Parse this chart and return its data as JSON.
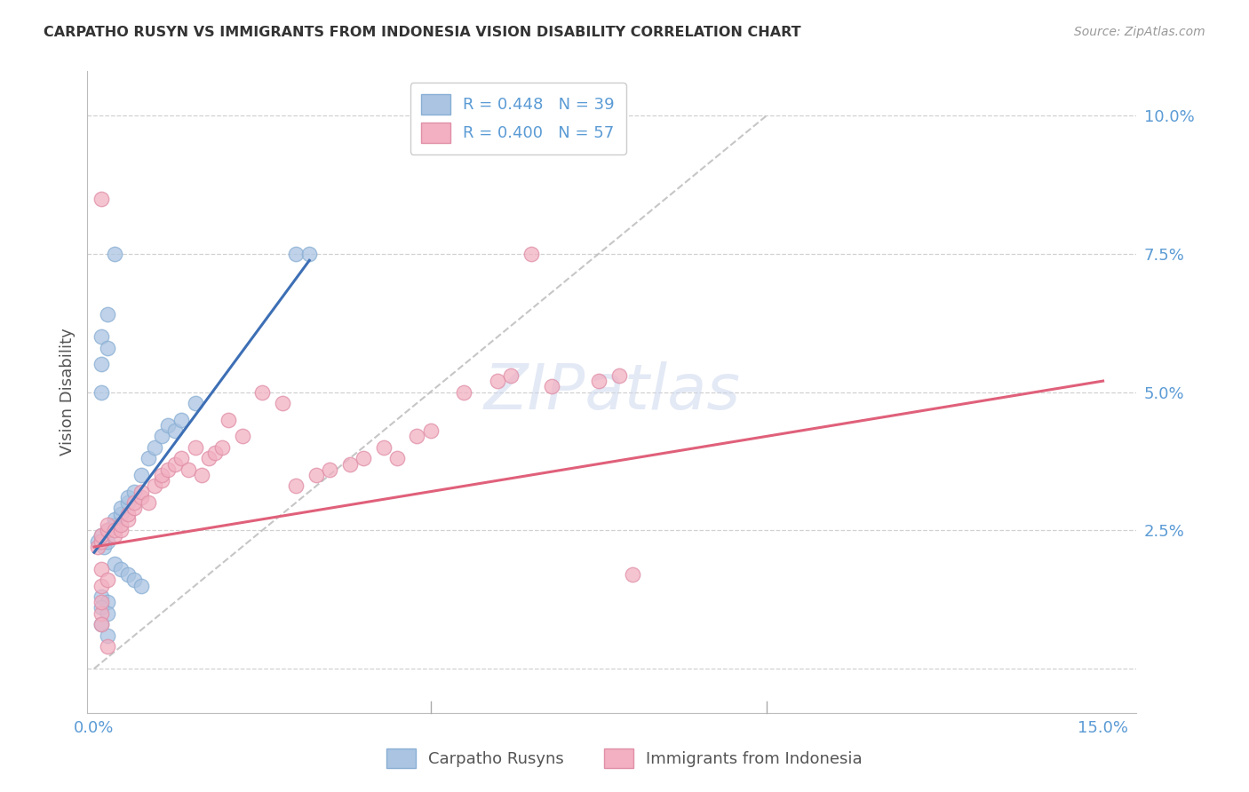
{
  "title": "CARPATHO RUSYN VS IMMIGRANTS FROM INDONESIA VISION DISABILITY CORRELATION CHART",
  "source": "Source: ZipAtlas.com",
  "ylabel": "Vision Disability",
  "xlim": [
    -0.001,
    0.155
  ],
  "ylim": [
    -0.008,
    0.108
  ],
  "yticks": [
    0.0,
    0.025,
    0.05,
    0.075,
    0.1
  ],
  "ytick_labels": [
    "",
    "2.5%",
    "5.0%",
    "7.5%",
    "10.0%"
  ],
  "xticks": [
    0.0,
    0.05,
    0.1,
    0.15
  ],
  "xtick_labels_show": [
    "0.0%",
    "",
    "",
    "15.0%"
  ],
  "blue_R": 0.448,
  "blue_N": 39,
  "pink_R": 0.4,
  "pink_N": 57,
  "blue_color": "#aac4e2",
  "blue_edge_color": "#8aafd4",
  "blue_line_color": "#3d6fb5",
  "pink_color": "#f2b0c2",
  "pink_edge_color": "#e090a8",
  "pink_line_color": "#e0607a",
  "blue_scatter_x": [
    0.0005,
    0.001,
    0.0015,
    0.002,
    0.002,
    0.003,
    0.003,
    0.004,
    0.004,
    0.005,
    0.005,
    0.006,
    0.007,
    0.008,
    0.009,
    0.01,
    0.011,
    0.012,
    0.013,
    0.015,
    0.001,
    0.001,
    0.002,
    0.003,
    0.004,
    0.005,
    0.006,
    0.007,
    0.001,
    0.002,
    0.001,
    0.002,
    0.003,
    0.03,
    0.032,
    0.001,
    0.002,
    0.001,
    0.002
  ],
  "blue_scatter_y": [
    0.023,
    0.024,
    0.022,
    0.023,
    0.025,
    0.026,
    0.027,
    0.028,
    0.029,
    0.03,
    0.031,
    0.032,
    0.035,
    0.038,
    0.04,
    0.042,
    0.044,
    0.043,
    0.045,
    0.048,
    0.055,
    0.06,
    0.064,
    0.019,
    0.018,
    0.017,
    0.016,
    0.015,
    0.013,
    0.012,
    0.05,
    0.058,
    0.075,
    0.075,
    0.075,
    0.011,
    0.01,
    0.008,
    0.006
  ],
  "pink_scatter_x": [
    0.0005,
    0.001,
    0.001,
    0.002,
    0.002,
    0.003,
    0.003,
    0.004,
    0.004,
    0.005,
    0.005,
    0.006,
    0.006,
    0.007,
    0.007,
    0.008,
    0.009,
    0.01,
    0.01,
    0.011,
    0.012,
    0.013,
    0.014,
    0.015,
    0.016,
    0.017,
    0.018,
    0.019,
    0.02,
    0.022,
    0.025,
    0.028,
    0.03,
    0.033,
    0.035,
    0.038,
    0.04,
    0.043,
    0.045,
    0.048,
    0.05,
    0.055,
    0.06,
    0.062,
    0.065,
    0.068,
    0.075,
    0.078,
    0.001,
    0.002,
    0.001,
    0.001,
    0.002,
    0.001,
    0.08,
    0.001,
    0.001
  ],
  "pink_scatter_y": [
    0.022,
    0.023,
    0.024,
    0.025,
    0.026,
    0.024,
    0.025,
    0.025,
    0.026,
    0.027,
    0.028,
    0.029,
    0.03,
    0.031,
    0.032,
    0.03,
    0.033,
    0.034,
    0.035,
    0.036,
    0.037,
    0.038,
    0.036,
    0.04,
    0.035,
    0.038,
    0.039,
    0.04,
    0.045,
    0.042,
    0.05,
    0.048,
    0.033,
    0.035,
    0.036,
    0.037,
    0.038,
    0.04,
    0.038,
    0.042,
    0.043,
    0.05,
    0.052,
    0.053,
    0.075,
    0.051,
    0.052,
    0.053,
    0.085,
    0.004,
    0.018,
    0.015,
    0.016,
    0.01,
    0.017,
    0.012,
    0.008
  ],
  "blue_line_x": [
    0.0,
    0.032
  ],
  "blue_line_y_intercept": 0.021,
  "blue_line_slope": 1.65,
  "pink_line_x": [
    0.0,
    0.15
  ],
  "pink_line_y_intercept": 0.022,
  "pink_line_slope": 0.2,
  "diag_line": [
    [
      0.0,
      0.1
    ],
    [
      0.0,
      0.1
    ]
  ],
  "watermark": "ZIPatlas",
  "background_color": "#ffffff",
  "grid_color": "#cccccc",
  "legend1_label_blue": "R = 0.448   N = 39",
  "legend1_label_pink": "R = 0.400   N = 57",
  "legend2_label_blue": "Carpatho Rusyns",
  "legend2_label_pink": "Immigrants from Indonesia"
}
